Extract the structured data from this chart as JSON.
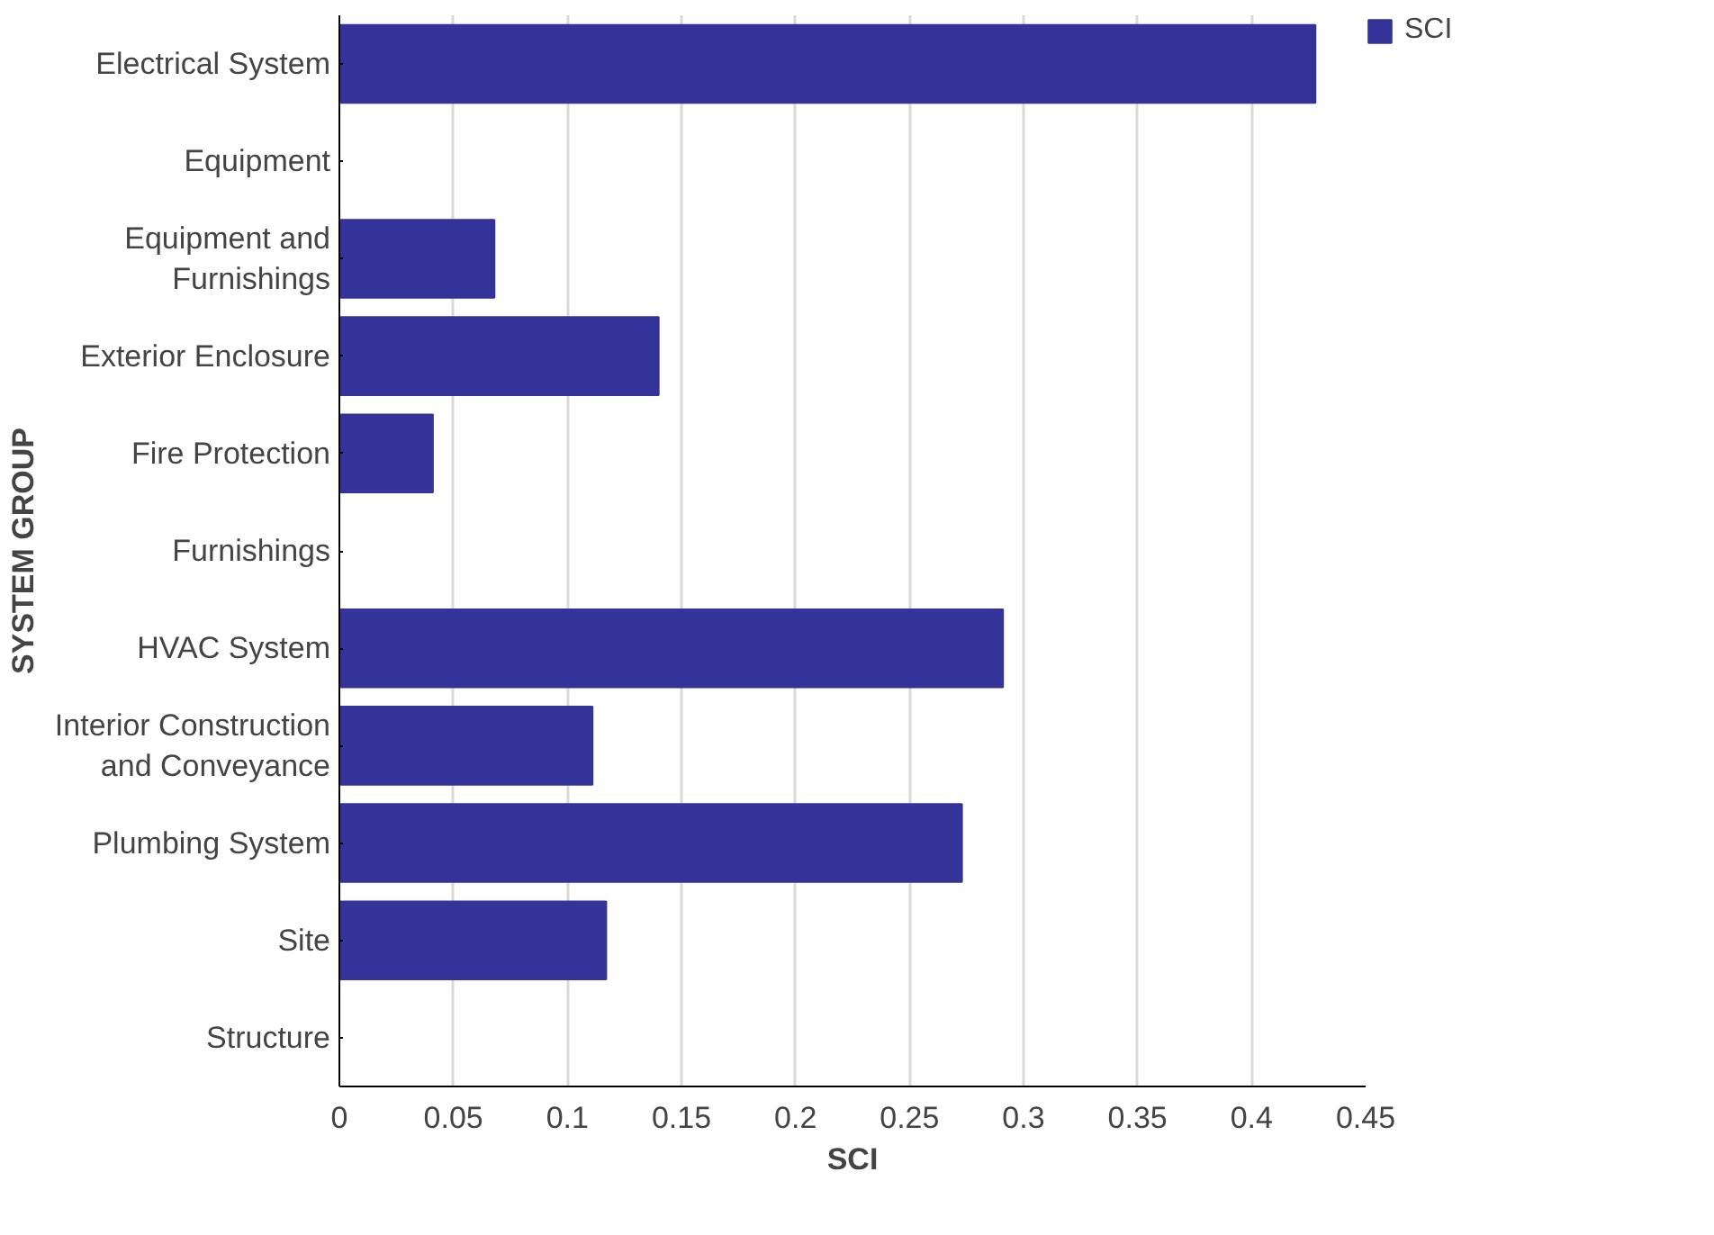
{
  "chart_data": {
    "type": "bar",
    "orientation": "horizontal",
    "xlabel": "SCI",
    "ylabel": "SYSTEM GROUP",
    "categories": [
      "Electrical System",
      "Equipment",
      "Equipment and\nFurnishings",
      "Exterior Enclosure",
      "Fire Protection",
      "Furnishings",
      "HVAC System",
      "Interior Construction\nand Conveyance",
      "Plumbing System",
      "Site",
      "Structure"
    ],
    "series": [
      {
        "name": "SCI",
        "color": "#333399",
        "values": [
          0.428,
          0,
          0.068,
          0.14,
          0.041,
          0,
          0.291,
          0.111,
          0.273,
          0.117,
          0
        ]
      }
    ],
    "xlim": [
      0,
      0.45
    ],
    "xticks": [
      0,
      0.05,
      0.1,
      0.15,
      0.2,
      0.25,
      0.3,
      0.35,
      0.4,
      0.45
    ],
    "grid": "x",
    "legend": "top right"
  }
}
